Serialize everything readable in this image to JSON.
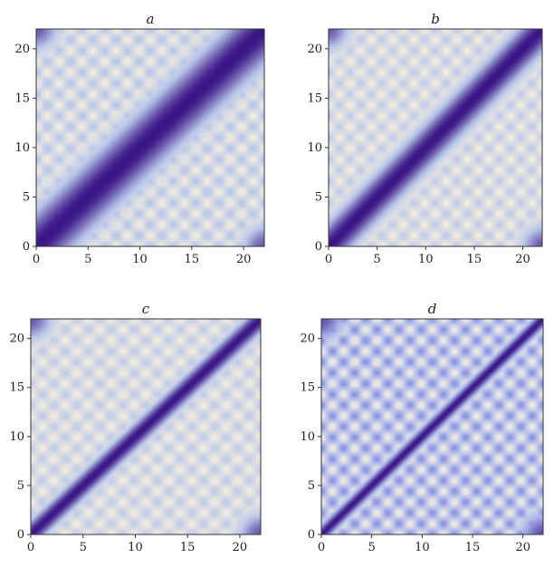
{
  "chart_data": [
    {
      "type": "heatmap",
      "title": "a",
      "xlim": [
        0,
        22
      ],
      "ylim": [
        0,
        22
      ],
      "xticks": [
        0,
        5,
        10,
        15,
        20
      ],
      "yticks": [
        0,
        5,
        10,
        15,
        20
      ],
      "diagonal_band_width": 3.6,
      "checker_period": 2.2,
      "checker_strength": 0.35,
      "colors": {
        "low": "#f2ecdf",
        "mid": "#b8c7ea",
        "high": "#3a1585"
      }
    },
    {
      "type": "heatmap",
      "title": "b",
      "xlim": [
        0,
        22
      ],
      "ylim": [
        0,
        22
      ],
      "xticks": [
        0,
        5,
        10,
        15,
        20
      ],
      "yticks": [
        0,
        5,
        10,
        15,
        20
      ],
      "diagonal_band_width": 2.4,
      "checker_period": 2.2,
      "checker_strength": 0.3,
      "colors": {
        "low": "#f2ecdf",
        "mid": "#b8c7ea",
        "high": "#3a1585"
      }
    },
    {
      "type": "heatmap",
      "title": "c",
      "xlim": [
        0,
        22
      ],
      "ylim": [
        0,
        22
      ],
      "xticks": [
        0,
        5,
        10,
        15,
        20
      ],
      "yticks": [
        0,
        5,
        10,
        15,
        20
      ],
      "diagonal_band_width": 1.4,
      "checker_period": 2.2,
      "checker_strength": 0.3,
      "colors": {
        "low": "#f2ecdf",
        "mid": "#b8c7ea",
        "high": "#3a1585"
      }
    },
    {
      "type": "heatmap",
      "title": "d",
      "xlim": [
        0,
        22
      ],
      "ylim": [
        0,
        22
      ],
      "xticks": [
        0,
        5,
        10,
        15,
        20
      ],
      "yticks": [
        0,
        5,
        10,
        15,
        20
      ],
      "diagonal_band_width": 0.9,
      "checker_period": 2.2,
      "checker_strength": 0.5,
      "colors": {
        "low": "#f2ecdf",
        "mid": "#a9b6ee",
        "high": "#3a1585"
      }
    }
  ]
}
